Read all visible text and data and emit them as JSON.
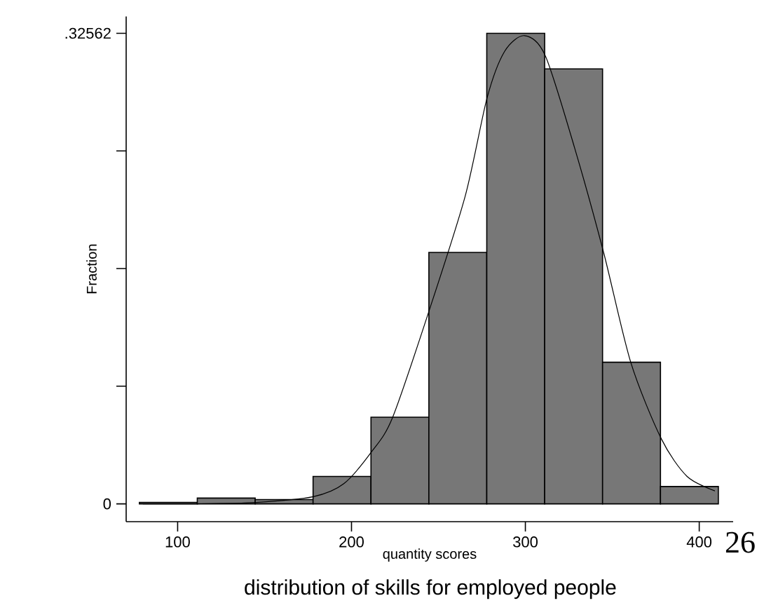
{
  "chart_data": {
    "type": "histogram",
    "title": "distribution of skills for employed people",
    "xlabel": "quantity scores",
    "ylabel": "Fraction",
    "annotations": [
      "26"
    ],
    "series": [
      {
        "color": "#777777",
        "bins": [
          78,
          111.3,
          144.6,
          177.9,
          211.2,
          244.5,
          277.8,
          311.1,
          344.4,
          377.7,
          411
        ],
        "values": [
          0.001,
          0.004,
          0.003,
          0.019,
          0.06,
          0.174,
          0.32562,
          0.301,
          0.098,
          0.012
        ]
      },
      {
        "type": "line",
        "color": "#000000",
        "x": [
          80,
          110,
          145,
          178,
          195.6,
          211.5,
          223.7,
          245,
          265.4,
          278,
          288,
          299.5,
          311.5,
          328.4,
          345,
          360.6,
          378.2,
          393,
          409
        ],
        "values": [
          0,
          0,
          0.001,
          0.005,
          0.014,
          0.036,
          0.06,
          0.135,
          0.213,
          0.281,
          0.313,
          0.324,
          0.31,
          0.246,
          0.174,
          0.098,
          0.045,
          0.019,
          0.009
        ]
      }
    ],
    "xlim": [
      70.4,
      419.5
    ],
    "ylim": [
      -0.0123,
      0.3373
    ],
    "xticks": [
      100,
      200,
      300,
      400
    ],
    "yticks": [
      0,
      {
        "value": 0.081405,
        "label": null
      },
      {
        "value": 0.16281,
        "label": null
      },
      {
        "value": 0.244215,
        "label": null
      },
      {
        "value": 0.32562,
        "label": ".32562"
      }
    ],
    "grid": false
  }
}
